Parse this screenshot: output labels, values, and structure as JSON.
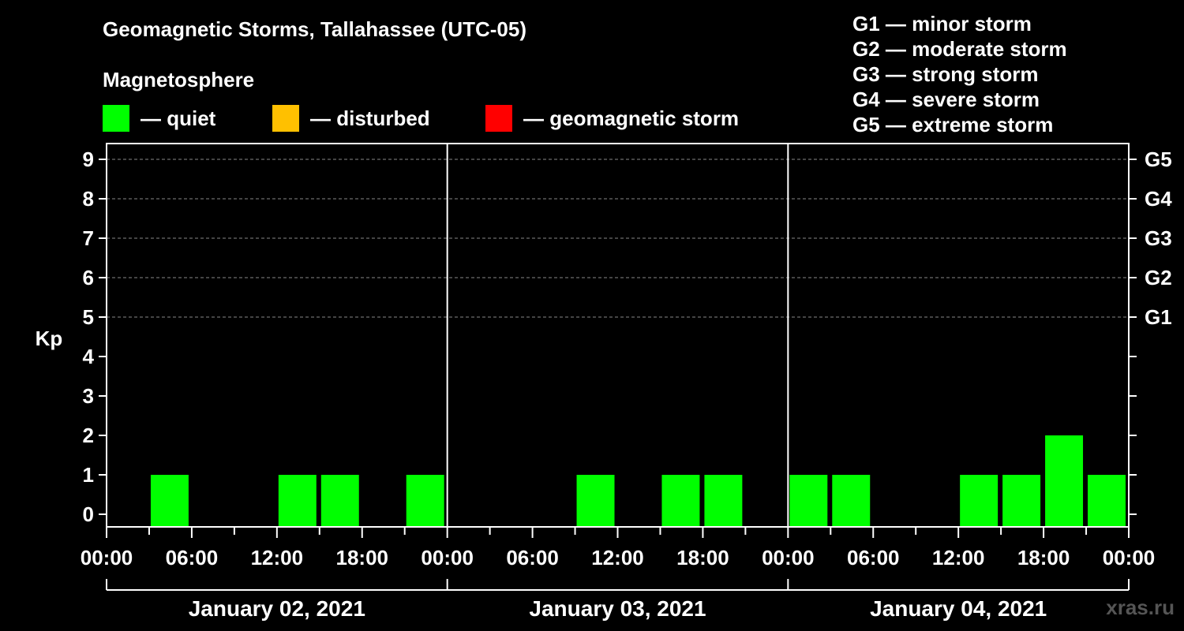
{
  "title": "Geomagnetic Storms, Tallahassee (UTC-05)",
  "subtitle": "Magnetosphere",
  "legend": [
    {
      "label": "— quiet",
      "color": "#00ff00"
    },
    {
      "label": "— disturbed",
      "color": "#ffc000"
    },
    {
      "label": "— geomagnetic storm",
      "color": "#ff0000"
    }
  ],
  "g_levels": [
    "G1 — minor storm",
    "G2 — moderate storm",
    "G3 — strong storm",
    "G4 — severe storm",
    "G5 — extreme storm"
  ],
  "watermark": "xras.ru",
  "chart_data": {
    "type": "bar",
    "ylabel": "Kp",
    "ylim": [
      0,
      9
    ],
    "y_ticks": [
      "0",
      "1",
      "2",
      "3",
      "4",
      "5",
      "6",
      "7",
      "8",
      "9"
    ],
    "right_axis_labels": [
      {
        "kp": 5,
        "label": "G1"
      },
      {
        "kp": 6,
        "label": "G2"
      },
      {
        "kp": 7,
        "label": "G3"
      },
      {
        "kp": 8,
        "label": "G4"
      },
      {
        "kp": 9,
        "label": "G5"
      }
    ],
    "x_tick_labels": [
      "00:00",
      "06:00",
      "12:00",
      "18:00",
      "00:00",
      "06:00",
      "12:00",
      "18:00",
      "00:00",
      "06:00",
      "12:00",
      "18:00",
      "00:00"
    ],
    "days": [
      "January 02, 2021",
      "January 03, 2021",
      "January 04, 2021"
    ],
    "hours_per_bar": 3,
    "values": [
      0,
      1,
      0,
      0,
      1,
      1,
      0,
      1,
      0,
      0,
      0,
      1,
      0,
      1,
      1,
      0,
      1,
      1,
      0,
      0,
      1,
      1,
      2,
      1
    ],
    "grid": "dashed horizontal lines at Kp 5–9",
    "bar_color": "#00ff00"
  }
}
